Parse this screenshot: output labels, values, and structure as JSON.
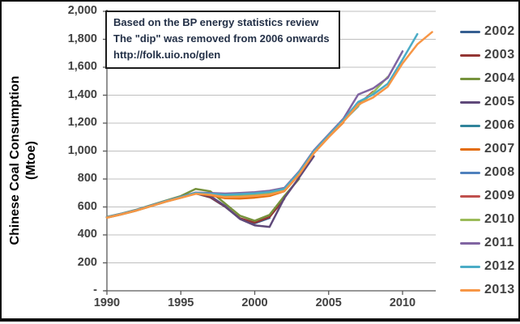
{
  "figure": {
    "y_axis_title": [
      "Chinese Coal Consumption",
      "(Mtoe)"
    ],
    "annotation": {
      "line1": "Based on the BP energy statistics review",
      "line2": "The \"dip\" was removed from 2006 onwards",
      "line3": "http://folk.uio.no/glen"
    }
  },
  "chart_data": {
    "type": "line",
    "title": "",
    "xlabel": "",
    "ylabel": "Chinese Coal Consumption (Mtoe)",
    "ylim": [
      0,
      2000
    ],
    "xlim": [
      1990,
      2012
    ],
    "grid": true,
    "legend_position": "right",
    "gridline_color": "#bfbfbf",
    "axis_color": "#595959",
    "x_start": 1990,
    "x_ticks": [
      "1990",
      "1995",
      "2000",
      "2005",
      "2010"
    ],
    "x_tick_years": [
      1990,
      1995,
      2000,
      2005,
      2010
    ],
    "y_ticks": [
      {
        "label": "2,000",
        "value": 2000
      },
      {
        "label": "1,800",
        "value": 1800
      },
      {
        "label": "1,600",
        "value": 1600
      },
      {
        "label": "1,400",
        "value": 1400
      },
      {
        "label": "1,200",
        "value": 1200
      },
      {
        "label": "1,000",
        "value": 1000
      },
      {
        "label": "800",
        "value": 800
      },
      {
        "label": "600",
        "value": 600
      },
      {
        "label": "400",
        "value": 400
      },
      {
        "label": "200",
        "value": 200
      },
      {
        "label": "-",
        "value": 0
      }
    ],
    "series": [
      {
        "name": "2002",
        "color": "#365F91",
        "values": [
          525,
          549,
          576,
          608,
          640,
          668,
          697,
          668,
          601,
          516,
          483,
          521
        ]
      },
      {
        "name": "2003",
        "color": "#943634",
        "values": [
          527,
          551,
          578,
          610,
          642,
          670,
          699,
          670,
          603,
          519,
          488,
          528,
          658
        ]
      },
      {
        "name": "2004",
        "color": "#76923C",
        "values": [
          529,
          553,
          581,
          613,
          646,
          678,
          729,
          712,
          624,
          537,
          501,
          543,
          678,
          801
        ]
      },
      {
        "name": "2005",
        "color": "#5F497A",
        "values": [
          524,
          548,
          575,
          607,
          639,
          667,
          701,
          678,
          606,
          514,
          468,
          457,
          663,
          810,
          963
        ]
      },
      {
        "name": "2006",
        "color": "#31849B",
        "values": [
          526,
          550,
          577,
          609,
          641,
          669,
          698,
          692,
          684,
          688,
          693,
          702,
          724,
          838,
          991,
          1104
        ]
      },
      {
        "name": "2007",
        "color": "#E36C0A",
        "values": [
          523,
          547,
          574,
          606,
          638,
          666,
          695,
          684,
          662,
          660,
          667,
          679,
          713,
          831,
          985,
          1099,
          1205
        ]
      },
      {
        "name": "2008",
        "color": "#4F81BD",
        "values": [
          525,
          549,
          576,
          608,
          640,
          668,
          697,
          690,
          678,
          682,
          688,
          698,
          722,
          840,
          993,
          1108,
          1215,
          1320
        ]
      },
      {
        "name": "2009",
        "color": "#C0504D",
        "values": [
          526,
          550,
          577,
          609,
          641,
          669,
          698,
          691,
          680,
          684,
          690,
          700,
          725,
          843,
          996,
          1112,
          1222,
          1332,
          1426
        ]
      },
      {
        "name": "2010",
        "color": "#9BBB59",
        "values": [
          524,
          548,
          575,
          607,
          639,
          667,
          696,
          688,
          674,
          678,
          684,
          694,
          719,
          836,
          989,
          1103,
          1212,
          1325,
          1418,
          1531
        ]
      },
      {
        "name": "2011",
        "color": "#8064A2",
        "values": [
          528,
          552,
          579,
          611,
          643,
          673,
          703,
          700,
          696,
          700,
          706,
          716,
          736,
          854,
          1005,
          1119,
          1232,
          1405,
          1448,
          1524,
          1714
        ]
      },
      {
        "name": "2012",
        "color": "#4BACC6",
        "values": [
          527,
          551,
          578,
          610,
          642,
          671,
          700,
          695,
          688,
          692,
          698,
          708,
          730,
          848,
          999,
          1113,
          1224,
          1352,
          1404,
          1482,
          1655,
          1837
        ]
      },
      {
        "name": "2013",
        "color": "#F79646",
        "values": [
          524,
          548,
          575,
          607,
          639,
          666,
          694,
          687,
          670,
          672,
          678,
          688,
          714,
          832,
          986,
          1100,
          1210,
          1333,
          1383,
          1461,
          1628,
          1764,
          1852
        ]
      }
    ]
  }
}
